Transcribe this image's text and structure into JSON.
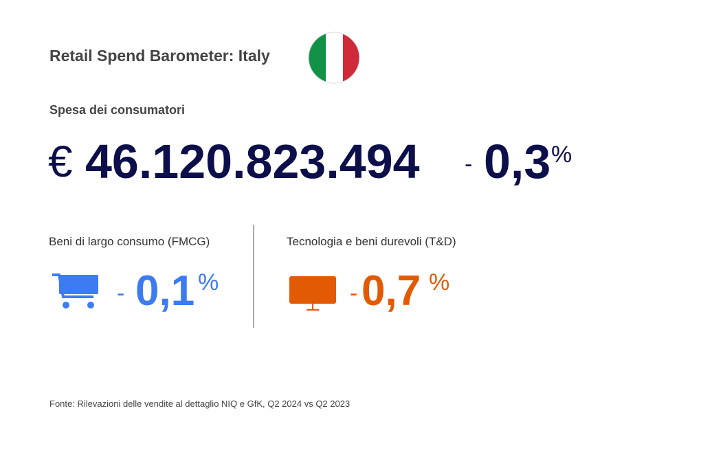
{
  "header": {
    "title": "Retail Spend Barometer: Italy"
  },
  "total": {
    "label": "Spesa dei consumatori",
    "currency": "€",
    "amount": "46.120.823.494",
    "sign": "-",
    "change": "0,3",
    "unit": "%"
  },
  "segments": [
    {
      "label": "Beni di largo consumo (FMCG)",
      "sign": "-",
      "change": "0,1",
      "unit": "%"
    },
    {
      "label": "Tecnologia e beni durevoli (T&D)",
      "sign": "-",
      "change": "0,7",
      "unit": "%"
    }
  ],
  "footer": {
    "source": "Fonte: Rilevazioni delle vendite al dettaglio NIQ e GfK, Q2 2024 vs Q2 2023"
  }
}
